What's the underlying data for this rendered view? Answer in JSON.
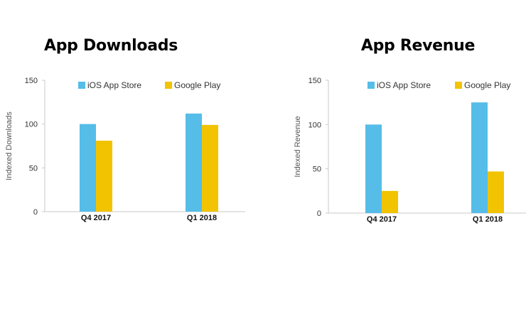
{
  "colors": {
    "ios": "#55bde8",
    "google": "#f2c300",
    "axis": "#c8c8c8",
    "text": "#333333"
  },
  "chart_data": [
    {
      "type": "bar",
      "title": "App Downloads",
      "ylabel": "Indexed Downloads",
      "xlabel": "",
      "categories": [
        "Q4 2017",
        "Q1 2018"
      ],
      "series": [
        {
          "name": "iOS App Store",
          "values": [
            100,
            112
          ]
        },
        {
          "name": "Google Play",
          "values": [
            81,
            99
          ]
        }
      ],
      "ylim": [
        0,
        150
      ],
      "yticks": [
        "0",
        "50",
        "100",
        "150"
      ],
      "grid": false,
      "legend": "top"
    },
    {
      "type": "bar",
      "title": "App Revenue",
      "ylabel": "Indexed Revenue",
      "xlabel": "",
      "categories": [
        "Q4 2017",
        "Q1 2018"
      ],
      "series": [
        {
          "name": "iOS App Store",
          "values": [
            100,
            125
          ]
        },
        {
          "name": "Google Play",
          "values": [
            25,
            47
          ]
        }
      ],
      "ylim": [
        0,
        150
      ],
      "yticks": [
        "0",
        "50",
        "100",
        "150"
      ],
      "grid": false,
      "legend": "top"
    }
  ]
}
